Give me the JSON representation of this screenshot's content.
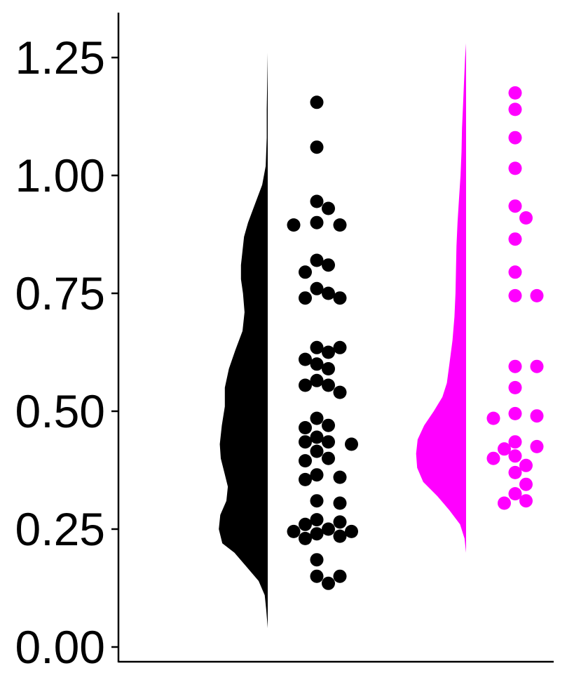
{
  "chart_data": {
    "type": "raincloud",
    "title": "",
    "xlabel": "",
    "ylabel": "",
    "ylim": [
      -0.03,
      1.34
    ],
    "y_ticks": [
      "0.00",
      "0.25",
      "0.50",
      "0.75",
      "1.00",
      "1.25"
    ],
    "grid": false,
    "legend": "none",
    "series": [
      {
        "color": "#000000",
        "density_range": [
          0.04,
          1.26
        ],
        "density_profile": [
          [
            0.04,
            0.0
          ],
          [
            0.08,
            0.03
          ],
          [
            0.11,
            0.06
          ],
          [
            0.14,
            0.18
          ],
          [
            0.17,
            0.42
          ],
          [
            0.2,
            0.66
          ],
          [
            0.22,
            0.9
          ],
          [
            0.25,
            0.97
          ],
          [
            0.28,
            0.94
          ],
          [
            0.31,
            0.82
          ],
          [
            0.34,
            0.79
          ],
          [
            0.37,
            0.86
          ],
          [
            0.4,
            0.93
          ],
          [
            0.43,
            0.95
          ],
          [
            0.47,
            0.91
          ],
          [
            0.51,
            0.85
          ],
          [
            0.55,
            0.85
          ],
          [
            0.59,
            0.77
          ],
          [
            0.63,
            0.64
          ],
          [
            0.67,
            0.5
          ],
          [
            0.71,
            0.46
          ],
          [
            0.75,
            0.49
          ],
          [
            0.78,
            0.53
          ],
          [
            0.81,
            0.53
          ],
          [
            0.84,
            0.5
          ],
          [
            0.87,
            0.47
          ],
          [
            0.9,
            0.39
          ],
          [
            0.94,
            0.25
          ],
          [
            0.98,
            0.11
          ],
          [
            1.02,
            0.04
          ],
          [
            1.08,
            0.02
          ],
          [
            1.14,
            0.02
          ],
          [
            1.2,
            0.01
          ],
          [
            1.26,
            0.0
          ]
        ],
        "points": [
          1.155,
          1.06,
          0.945,
          0.93,
          0.9,
          0.895,
          0.895,
          0.82,
          0.81,
          0.795,
          0.76,
          0.75,
          0.74,
          0.74,
          0.635,
          0.635,
          0.625,
          0.61,
          0.6,
          0.59,
          0.565,
          0.555,
          0.555,
          0.54,
          0.485,
          0.47,
          0.465,
          0.445,
          0.435,
          0.435,
          0.43,
          0.415,
          0.4,
          0.395,
          0.365,
          0.36,
          0.355,
          0.31,
          0.305,
          0.27,
          0.265,
          0.26,
          0.25,
          0.245,
          0.245,
          0.24,
          0.235,
          0.23,
          0.185,
          0.15,
          0.15,
          0.135
        ]
      },
      {
        "color": "#ff00ff",
        "density_range": [
          0.2,
          1.28
        ],
        "density_profile": [
          [
            0.2,
            0.0
          ],
          [
            0.23,
            0.03
          ],
          [
            0.26,
            0.12
          ],
          [
            0.29,
            0.33
          ],
          [
            0.32,
            0.57
          ],
          [
            0.35,
            0.85
          ],
          [
            0.38,
            0.97
          ],
          [
            0.41,
            0.99
          ],
          [
            0.44,
            0.96
          ],
          [
            0.47,
            0.83
          ],
          [
            0.5,
            0.64
          ],
          [
            0.53,
            0.47
          ],
          [
            0.56,
            0.38
          ],
          [
            0.6,
            0.33
          ],
          [
            0.65,
            0.27
          ],
          [
            0.7,
            0.23
          ],
          [
            0.75,
            0.21
          ],
          [
            0.8,
            0.2
          ],
          [
            0.85,
            0.19
          ],
          [
            0.9,
            0.17
          ],
          [
            0.95,
            0.14
          ],
          [
            1.0,
            0.11
          ],
          [
            1.05,
            0.09
          ],
          [
            1.1,
            0.08
          ],
          [
            1.15,
            0.06
          ],
          [
            1.2,
            0.04
          ],
          [
            1.25,
            0.02
          ],
          [
            1.28,
            0.0
          ]
        ],
        "points": [
          1.175,
          1.14,
          1.08,
          1.015,
          0.935,
          0.91,
          0.865,
          0.795,
          0.745,
          0.745,
          0.595,
          0.595,
          0.55,
          0.495,
          0.49,
          0.485,
          0.435,
          0.425,
          0.42,
          0.405,
          0.4,
          0.385,
          0.37,
          0.345,
          0.325,
          0.31,
          0.305
        ]
      }
    ]
  }
}
